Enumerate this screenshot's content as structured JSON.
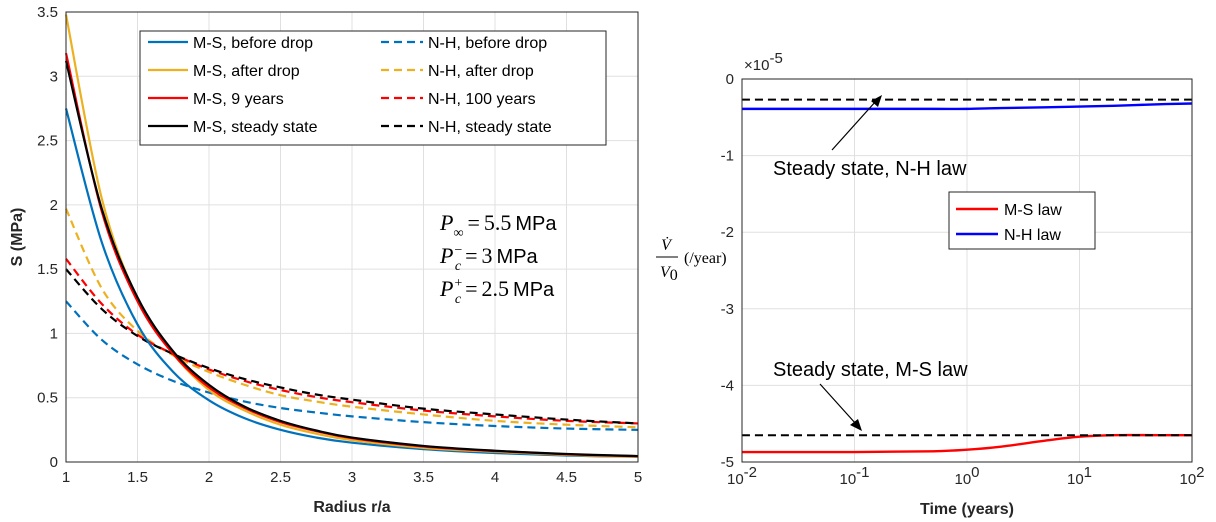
{
  "chart_data": [
    {
      "type": "line",
      "xlabel": "Radius r/a",
      "ylabel": "S (MPa)",
      "xlim": [
        1,
        5
      ],
      "ylim": [
        0,
        3.5
      ],
      "xticks": [
        "1",
        "1.5",
        "2",
        "2.5",
        "3",
        "3.5",
        "4",
        "4.5",
        "5"
      ],
      "yticks": [
        "0",
        "0.5",
        "1",
        "1.5",
        "2",
        "2.5",
        "3",
        "3.5"
      ],
      "grid": true,
      "legend_position": "top-right",
      "x": [
        1,
        1.25,
        1.5,
        1.75,
        2,
        2.25,
        2.5,
        2.75,
        3,
        3.5,
        4,
        4.5,
        5
      ],
      "series": [
        {
          "name": "M-S, before drop",
          "color": "#0072BD",
          "dash": "solid",
          "values": [
            2.75,
            1.71,
            1.07,
            0.7,
            0.48,
            0.34,
            0.25,
            0.19,
            0.15,
            0.1,
            0.07,
            0.05,
            0.04
          ]
        },
        {
          "name": "M-S, after drop",
          "color": "#EDB120",
          "dash": "solid",
          "values": [
            3.48,
            2.05,
            1.27,
            0.84,
            0.56,
            0.4,
            0.29,
            0.22,
            0.17,
            0.11,
            0.08,
            0.055,
            0.04
          ]
        },
        {
          "name": "M-S, 9 years",
          "color": "#FF0000",
          "dash": "solid",
          "values": [
            3.18,
            1.95,
            1.25,
            0.84,
            0.58,
            0.42,
            0.31,
            0.24,
            0.185,
            0.12,
            0.085,
            0.06,
            0.045
          ]
        },
        {
          "name": "M-S, steady state",
          "color": "#000000",
          "dash": "solid",
          "values": [
            3.12,
            1.97,
            1.28,
            0.86,
            0.6,
            0.43,
            0.32,
            0.245,
            0.19,
            0.125,
            0.088,
            0.062,
            0.046
          ]
        },
        {
          "name": "N-H, before drop",
          "color": "#0072BD",
          "dash": "dashed",
          "values": [
            1.25,
            0.95,
            0.76,
            0.63,
            0.54,
            0.47,
            0.42,
            0.385,
            0.355,
            0.31,
            0.28,
            0.26,
            0.25
          ]
        },
        {
          "name": "N-H, after drop",
          "color": "#EDB120",
          "dash": "dashed",
          "values": [
            1.97,
            1.35,
            1.02,
            0.83,
            0.7,
            0.6,
            0.52,
            0.47,
            0.43,
            0.37,
            0.32,
            0.29,
            0.27
          ]
        },
        {
          "name": "N-H, 100 years",
          "color": "#FF0000",
          "dash": "dashed",
          "values": [
            1.58,
            1.23,
            0.99,
            0.84,
            0.72,
            0.63,
            0.56,
            0.505,
            0.465,
            0.4,
            0.355,
            0.32,
            0.3
          ]
        },
        {
          "name": "N-H, steady state",
          "color": "#000000",
          "dash": "dashed",
          "values": [
            1.5,
            1.19,
            0.98,
            0.84,
            0.73,
            0.645,
            0.58,
            0.525,
            0.485,
            0.415,
            0.37,
            0.33,
            0.3
          ]
        }
      ],
      "annotations": {
        "p_inf": {
          "symbol": "P",
          "sub": "∞",
          "sup": "",
          "value": "5.5",
          "unit": "MPa"
        },
        "p_c_minus": {
          "symbol": "P",
          "sub": "c",
          "sup": "−",
          "value": "3",
          "unit": "MPa"
        },
        "p_c_plus": {
          "symbol": "P",
          "sub": "c",
          "sup": "+",
          "value": "2.5",
          "unit": "MPa"
        }
      }
    },
    {
      "type": "line",
      "xscale": "log",
      "xlabel": "Time (years)",
      "ylabel_num": "V̇",
      "ylabel_den": "V",
      "ylabel_den_sub": "0",
      "ylabel_unit": "(/year)",
      "y_multiplier_base": "×10",
      "y_multiplier_exp": "-5",
      "xlim": [
        0.01,
        100
      ],
      "ylim": [
        -5,
        0
      ],
      "xticks": [
        {
          "base": "10",
          "exp": "-2"
        },
        {
          "base": "10",
          "exp": "-1"
        },
        {
          "base": "10",
          "exp": "0"
        },
        {
          "base": "10",
          "exp": "1"
        },
        {
          "base": "10",
          "exp": "2"
        }
      ],
      "yticks": [
        "0",
        "-1",
        "-2",
        "-3",
        "-4",
        "-5"
      ],
      "grid": true,
      "legend_position": "middle",
      "x": [
        0.01,
        0.1,
        0.5,
        1,
        2,
        5,
        10,
        20,
        50,
        100
      ],
      "series": [
        {
          "name": "M-S law",
          "color": "#FF0000",
          "dash": "solid",
          "values": [
            -4.87,
            -4.87,
            -4.86,
            -4.84,
            -4.8,
            -4.72,
            -4.67,
            -4.65,
            -4.65,
            -4.65
          ]
        },
        {
          "name": "N-H law",
          "color": "#0000FF",
          "dash": "solid",
          "values": [
            -0.39,
            -0.39,
            -0.39,
            -0.39,
            -0.38,
            -0.37,
            -0.36,
            -0.35,
            -0.33,
            -0.32
          ]
        },
        {
          "name": "",
          "color": "#000000",
          "dash": "dashed",
          "values": [
            -0.27,
            -0.27,
            -0.27,
            -0.27,
            -0.27,
            -0.27,
            -0.27,
            -0.27,
            -0.27,
            -0.27
          ]
        },
        {
          "name": "",
          "color": "#000000",
          "dash": "dashed",
          "values": [
            -4.65,
            -4.65,
            -4.65,
            -4.65,
            -4.65,
            -4.65,
            -4.65,
            -4.65,
            -4.65,
            -4.65
          ]
        }
      ],
      "annotations": {
        "nh_steady": "Steady state,  N-H law",
        "ms_steady": "Steady state,  M-S law"
      }
    }
  ]
}
